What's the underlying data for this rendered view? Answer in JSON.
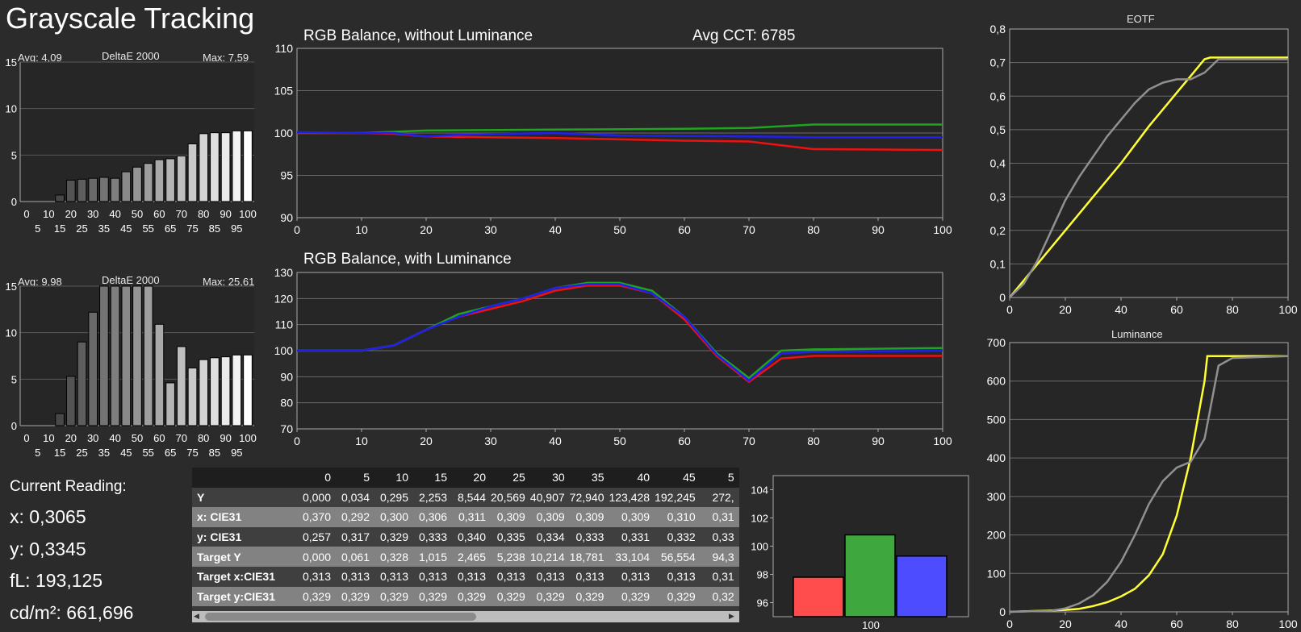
{
  "title": "Grayscale Tracking",
  "chart_data": [
    {
      "type": "bar",
      "title": "DeltaE 2000",
      "avg_label": "Avg: 4,09",
      "max_label": "Max: 7,59",
      "categories": [
        0,
        5,
        10,
        15,
        20,
        25,
        30,
        35,
        40,
        45,
        50,
        55,
        60,
        65,
        70,
        75,
        80,
        85,
        90,
        95,
        100
      ],
      "values": [
        0,
        0,
        0,
        0.7,
        2.3,
        2.4,
        2.5,
        2.6,
        2.5,
        3.2,
        3.7,
        4.1,
        4.5,
        4.6,
        4.9,
        6.2,
        7.3,
        7.4,
        7.4,
        7.6,
        7.6
      ],
      "ylim": [
        0,
        15
      ],
      "yticks": [
        "0",
        "5",
        "10",
        "15"
      ],
      "xticks_top": [
        "0",
        "10",
        "20",
        "30",
        "40",
        "50",
        "60",
        "70",
        "80",
        "90",
        "100"
      ],
      "xticks_bottom": [
        "5",
        "15",
        "25",
        "35",
        "45",
        "55",
        "65",
        "75",
        "85",
        "95"
      ]
    },
    {
      "type": "bar",
      "title": "DeltaE 2000",
      "avg_label": "Avg: 9,98",
      "max_label": "Max: 25,61",
      "categories": [
        0,
        5,
        10,
        15,
        20,
        25,
        30,
        35,
        40,
        45,
        50,
        55,
        60,
        65,
        70,
        75,
        80,
        85,
        90,
        95,
        100
      ],
      "values": [
        0,
        0,
        0,
        1.3,
        5.3,
        9.0,
        12.2,
        15,
        15,
        15,
        15,
        15,
        10.9,
        4.6,
        8.5,
        6.2,
        7.1,
        7.3,
        7.4,
        7.6,
        7.6
      ],
      "ylim": [
        0,
        15
      ],
      "yticks": [
        "0",
        "5",
        "10",
        "15"
      ],
      "xticks_top": [
        "0",
        "10",
        "20",
        "30",
        "40",
        "50",
        "60",
        "70",
        "80",
        "90",
        "100"
      ],
      "xticks_bottom": [
        "5",
        "15",
        "25",
        "35",
        "45",
        "55",
        "65",
        "75",
        "85",
        "95"
      ]
    },
    {
      "type": "line",
      "title": "RGB Balance, without Luminance",
      "extra_label": "Avg CCT: 6785",
      "ylim": [
        90,
        110
      ],
      "xlim": [
        0,
        100
      ],
      "yticks": [
        "90",
        "95",
        "100",
        "105",
        "110"
      ],
      "xticks": [
        "0",
        "10",
        "20",
        "30",
        "40",
        "50",
        "60",
        "70",
        "80",
        "90",
        "100"
      ],
      "series": [
        {
          "color": "#1fa51f",
          "x": [
            0,
            10,
            20,
            40,
            60,
            70,
            80,
            100
          ],
          "y": [
            100,
            100,
            100.3,
            100.4,
            100.5,
            100.6,
            101,
            101
          ]
        },
        {
          "color": "#ee1111",
          "x": [
            0,
            10,
            15,
            20,
            40,
            60,
            70,
            80,
            100
          ],
          "y": [
            100,
            100,
            99.9,
            99.6,
            99.4,
            99.1,
            99,
            98.1,
            98
          ]
        },
        {
          "color": "#2020ee",
          "x": [
            0,
            10,
            15,
            20,
            25,
            40,
            50,
            70,
            80,
            100
          ],
          "y": [
            100.1,
            100,
            100,
            99.6,
            99.8,
            100,
            99.7,
            99.6,
            99.5,
            99.5
          ]
        }
      ]
    },
    {
      "type": "line",
      "title": "RGB Balance, with Luminance",
      "ylim": [
        70,
        130
      ],
      "xlim": [
        0,
        100
      ],
      "yticks": [
        "70",
        "80",
        "90",
        "100",
        "110",
        "120",
        "130"
      ],
      "xticks": [
        "0",
        "10",
        "20",
        "30",
        "40",
        "50",
        "60",
        "70",
        "80",
        "90",
        "100"
      ],
      "series": [
        {
          "color": "#ee1111",
          "x": [
            0,
            10,
            15,
            20,
            25,
            30,
            35,
            40,
            45,
            50,
            55,
            60,
            65,
            70,
            75,
            80,
            100
          ],
          "y": [
            100,
            100,
            102,
            108,
            113,
            116,
            119,
            123,
            125,
            125,
            122,
            112,
            98,
            88,
            97,
            98,
            98
          ]
        },
        {
          "color": "#1fa51f",
          "x": [
            0,
            10,
            15,
            20,
            25,
            30,
            35,
            40,
            45,
            50,
            55,
            60,
            65,
            70,
            75,
            80,
            100
          ],
          "y": [
            100,
            100,
            102,
            108,
            114,
            117,
            120,
            124,
            126,
            126,
            123,
            113,
            99,
            89.5,
            100,
            100.5,
            101
          ]
        },
        {
          "color": "#2020ee",
          "x": [
            0,
            10,
            15,
            20,
            25,
            30,
            35,
            40,
            45,
            50,
            55,
            60,
            65,
            70,
            75,
            80,
            100
          ],
          "y": [
            100,
            100,
            102,
            108,
            113,
            117,
            120,
            124,
            125.5,
            125.5,
            122,
            113,
            98.5,
            88.5,
            99,
            99.5,
            100
          ]
        }
      ]
    },
    {
      "type": "line",
      "title": "EOTF",
      "ylim": [
        0,
        0.8
      ],
      "xlim": [
        0,
        100
      ],
      "yticks": [
        "0",
        "0,1",
        "0,2",
        "0,3",
        "0,4",
        "0,5",
        "0,6",
        "0,7",
        "0,8"
      ],
      "xticks": [
        "0",
        "20",
        "40",
        "60",
        "80",
        "100"
      ],
      "series": [
        {
          "color": "#ffff33",
          "x": [
            0,
            5,
            10,
            15,
            20,
            30,
            40,
            50,
            60,
            65,
            70,
            72,
            100
          ],
          "y": [
            0,
            0.05,
            0.1,
            0.15,
            0.2,
            0.3,
            0.4,
            0.51,
            0.61,
            0.66,
            0.71,
            0.715,
            0.715
          ]
        },
        {
          "color": "#909090",
          "x": [
            0,
            5,
            10,
            15,
            20,
            25,
            30,
            35,
            40,
            45,
            50,
            55,
            60,
            65,
            70,
            75,
            80,
            100
          ],
          "y": [
            0,
            0.04,
            0.11,
            0.2,
            0.29,
            0.36,
            0.42,
            0.48,
            0.53,
            0.58,
            0.62,
            0.64,
            0.65,
            0.65,
            0.67,
            0.71,
            0.71,
            0.71
          ]
        }
      ]
    },
    {
      "type": "line",
      "title": "Luminance",
      "ylim": [
        0,
        700
      ],
      "xlim": [
        0,
        100
      ],
      "yticks": [
        "0",
        "100",
        "200",
        "300",
        "400",
        "500",
        "600",
        "700"
      ],
      "xticks": [
        "0",
        "20",
        "40",
        "60",
        "80",
        "100"
      ],
      "series": [
        {
          "color": "#ffff33",
          "x": [
            0,
            20,
            25,
            30,
            35,
            40,
            45,
            50,
            55,
            60,
            65,
            70,
            71,
            100
          ],
          "y": [
            0,
            5,
            8,
            15,
            25,
            40,
            60,
            95,
            150,
            250,
            400,
            600,
            665,
            665
          ]
        },
        {
          "color": "#909090",
          "x": [
            0,
            15,
            20,
            25,
            30,
            35,
            40,
            45,
            50,
            55,
            60,
            65,
            70,
            75,
            80,
            100
          ],
          "y": [
            0,
            3,
            9,
            22,
            43,
            78,
            130,
            200,
            280,
            340,
            375,
            390,
            450,
            640,
            660,
            665
          ]
        }
      ]
    },
    {
      "type": "bar",
      "categories": [
        "100"
      ],
      "series": [
        {
          "color": "#ff4d4d",
          "values": [
            97.8
          ]
        },
        {
          "color": "#3ea83e",
          "values": [
            100.8
          ]
        },
        {
          "color": "#4d4dff",
          "values": [
            99.3
          ]
        }
      ],
      "ylim": [
        95,
        105
      ],
      "yticks": [
        "96",
        "98",
        "100",
        "102",
        "104"
      ]
    }
  ],
  "reading": {
    "title": "Current Reading:",
    "x": "x: 0,3065",
    "y": "y: 0,3345",
    "fl": "fL: 193,125",
    "cd": "cd/m²: 661,696"
  },
  "table": {
    "columns": [
      "0",
      "5",
      "10",
      "15",
      "20",
      "25",
      "30",
      "35",
      "40",
      "45",
      "5"
    ],
    "rows": [
      {
        "label": "Y",
        "values": [
          "0,000",
          "0,034",
          "0,295",
          "2,253",
          "8,544",
          "20,569",
          "40,907",
          "72,940",
          "123,428",
          "192,245",
          "272,"
        ]
      },
      {
        "label": "x: CIE31",
        "values": [
          "0,370",
          "0,292",
          "0,300",
          "0,306",
          "0,311",
          "0,309",
          "0,309",
          "0,309",
          "0,309",
          "0,310",
          "0,31"
        ]
      },
      {
        "label": "y: CIE31",
        "values": [
          "0,257",
          "0,317",
          "0,329",
          "0,333",
          "0,340",
          "0,335",
          "0,334",
          "0,333",
          "0,331",
          "0,332",
          "0,33"
        ]
      },
      {
        "label": "Target Y",
        "values": [
          "0,000",
          "0,061",
          "0,328",
          "1,015",
          "2,465",
          "5,238",
          "10,214",
          "18,781",
          "33,104",
          "56,554",
          "94,3"
        ]
      },
      {
        "label": "Target x:CIE31",
        "values": [
          "0,313",
          "0,313",
          "0,313",
          "0,313",
          "0,313",
          "0,313",
          "0,313",
          "0,313",
          "0,313",
          "0,313",
          "0,31"
        ]
      },
      {
        "label": "Target y:CIE31",
        "values": [
          "0,329",
          "0,329",
          "0,329",
          "0,329",
          "0,329",
          "0,329",
          "0,329",
          "0,329",
          "0,329",
          "0,329",
          "0,32"
        ]
      }
    ]
  }
}
